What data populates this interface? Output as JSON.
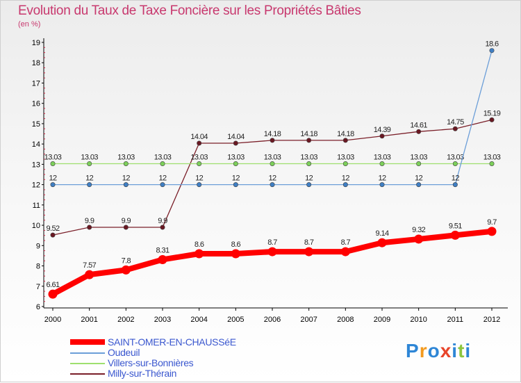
{
  "title": "Evolution du Taux de Taxe Foncière sur les Propriétés Bâties",
  "unit_label": "(en %)",
  "logo": {
    "letters": [
      "P",
      "r",
      "o",
      "x",
      "i",
      "t",
      "i"
    ],
    "colors": [
      "#2e86d6",
      "#f39a1e",
      "#2e86d6",
      "#e8442a",
      "#2e86d6",
      "#8cc63f",
      "#2e86d6"
    ]
  },
  "chart_data": {
    "type": "line",
    "title": "Evolution du Taux de Taxe Foncière sur les Propriétés Bâties",
    "xlabel": "",
    "ylabel": "(en %)",
    "x": [
      "2000",
      "2001",
      "2002",
      "2003",
      "2004",
      "2005",
      "2006",
      "2007",
      "2008",
      "2009",
      "2010",
      "2011",
      "2012"
    ],
    "ylim": [
      6,
      19
    ],
    "yticks": [
      "6",
      "7",
      "8",
      "9",
      "10",
      "11",
      "12",
      "13",
      "14",
      "15",
      "16",
      "17",
      "18",
      "19"
    ],
    "grid": false,
    "legend_position": "bottom-left",
    "series": [
      {
        "name": "Milly-sur-Thérain",
        "color": "#7a1e28",
        "values": [
          9.52,
          9.9,
          9.9,
          9.9,
          14.04,
          14.04,
          14.18,
          14.18,
          14.18,
          14.39,
          14.61,
          14.75,
          15.19
        ],
        "labels": [
          "9.52",
          "9.9",
          "9.9",
          "9.9",
          "14.04",
          "14.04",
          "14.18",
          "14.18",
          "14.18",
          "14.39",
          "14.61",
          "14.75",
          "15.19"
        ]
      },
      {
        "name": "Villers-sur-Bonnières",
        "color": "#9ee06e",
        "values": [
          13.03,
          13.03,
          13.03,
          13.03,
          13.03,
          13.03,
          13.03,
          13.03,
          13.03,
          13.03,
          13.03,
          13.03,
          13.03
        ],
        "labels": [
          "13.03",
          "13.03",
          "13.03",
          "13.03",
          "13.03",
          "13.03",
          "13.03",
          "13.03",
          "13.03",
          "13.03",
          "13.03",
          "13.03",
          "13.03"
        ]
      },
      {
        "name": "Oudeuil",
        "color": "#6b9ed8",
        "values": [
          12,
          12,
          12,
          12,
          12,
          12,
          12,
          12,
          12,
          12,
          12,
          12,
          18.6
        ],
        "labels": [
          "12",
          "12",
          "12",
          "12",
          "12",
          "12",
          "12",
          "12",
          "12",
          "12",
          "12",
          "12",
          "18.6"
        ]
      },
      {
        "name": "SAINT-OMER-EN-CHAUSSéE",
        "color": "#ff0000",
        "values": [
          6.61,
          7.57,
          7.8,
          8.31,
          8.6,
          8.6,
          8.7,
          8.7,
          8.7,
          9.14,
          9.32,
          9.51,
          9.7
        ],
        "labels": [
          "6.61",
          "7.57",
          "7.8",
          "8.31",
          "8.6",
          "8.6",
          "8.7",
          "8.7",
          "8.7",
          "9.14",
          "9.32",
          "9.51",
          "9.7"
        ]
      }
    ],
    "legend": [
      {
        "name": "SAINT-OMER-EN-CHAUSSéE",
        "color": "#ff0000"
      },
      {
        "name": "Oudeuil",
        "color": "#6b9ed8"
      },
      {
        "name": "Villers-sur-Bonnières",
        "color": "#9ee06e"
      },
      {
        "name": "Milly-sur-Thérain",
        "color": "#7a1e28"
      }
    ]
  }
}
